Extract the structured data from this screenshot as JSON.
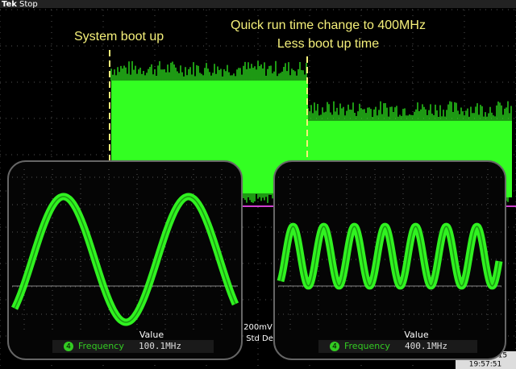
{
  "header": {
    "brand": "Tek",
    "status": "Stop"
  },
  "annotations": [
    {
      "text": "System boot up"
    },
    {
      "text": "Quick run time change to 400MHz"
    },
    {
      "text": "Less boot up time"
    }
  ],
  "insets": [
    {
      "label": "Value",
      "channel": "4",
      "measurement": "Frequency",
      "reading": "100.1MHz"
    },
    {
      "label": "Value",
      "channel": "4",
      "measurement": "Frequency",
      "reading": "400.1MHz"
    }
  ],
  "scale": "200mV",
  "stat": "Std Dev",
  "date": "30 Jun 2015",
  "time": "19:57:51"
}
